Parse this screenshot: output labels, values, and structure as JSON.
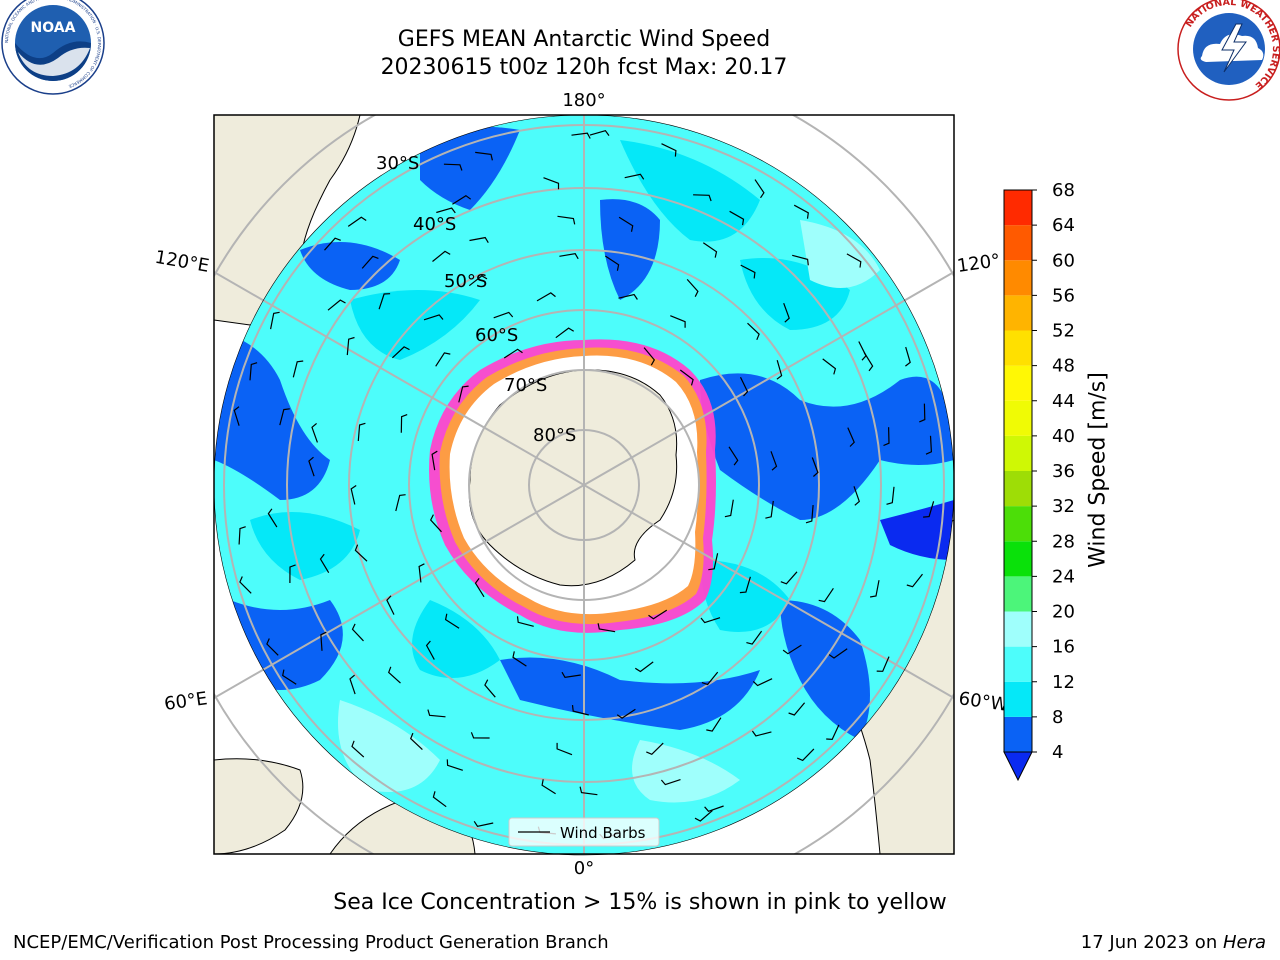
{
  "title": {
    "line1": "GEFS MEAN Antarctic Wind Speed",
    "line2": "20230615 t00z 120h fcst   Max: 20.17"
  },
  "subtitle": "Sea Ice Concentration > 15% is shown in pink to yellow",
  "footer": {
    "left": "NCEP/EMC/Verification Post Processing Product Generation Branch",
    "right_prefix": "17 Jun 2023 on ",
    "right_machine": "Hera"
  },
  "logos": {
    "noaa": "NOAA",
    "noaa_ring": "NATIONAL OCEANIC AND ATMOSPHERIC ADMINISTRATION · U.S. DEPARTMENT OF COMMERCE",
    "nws_ring": "NATIONAL WEATHER SERVICE"
  },
  "map": {
    "lon_labels": {
      "top": "180°",
      "bottom": "0°",
      "left_upper": "120°E",
      "left_lower": "60°E",
      "right_upper": "120°",
      "right_lower": "60°W"
    },
    "lat_labels": [
      "30°S",
      "40°S",
      "50°S",
      "60°S",
      "70°S",
      "80°S"
    ],
    "legend_label": "Wind Barbs"
  },
  "colorbar": {
    "label": "Wind Speed [m/s]",
    "ticks": [
      4,
      8,
      12,
      16,
      20,
      24,
      28,
      32,
      36,
      40,
      44,
      48,
      52,
      56,
      60,
      64,
      68
    ],
    "colors": [
      "#0a62f5",
      "#05e8f8",
      "#4dfdfb",
      "#9ffffc",
      "#4cf57a",
      "#0ae10a",
      "#4cde08",
      "#9edd06",
      "#cff805",
      "#f0fb05",
      "#fff805",
      "#ffe000",
      "#ffb400",
      "#ff8a00",
      "#ff5a00",
      "#ff2a00"
    ],
    "extend_color": "#0a2af0"
  }
}
